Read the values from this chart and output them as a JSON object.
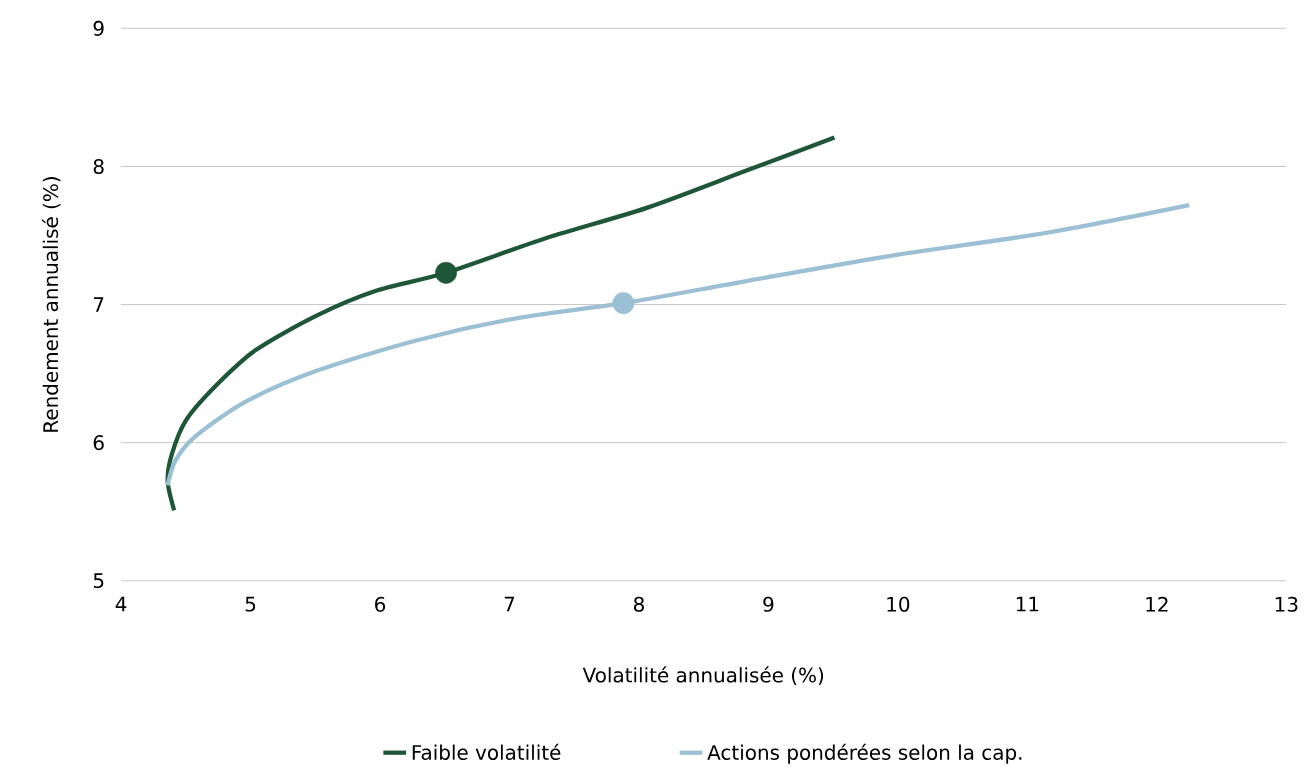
{
  "chart_data": {
    "type": "line",
    "xlabel": "Volatilité annualisée (%)",
    "ylabel": "Rendement annualisé (%)",
    "xlim": [
      4,
      13
    ],
    "xticks": [
      4,
      5,
      6,
      7,
      8,
      9,
      10,
      11,
      12,
      13
    ],
    "ylim": [
      5,
      9
    ],
    "yticks": [
      5,
      6,
      7,
      8,
      9
    ],
    "grid": "y",
    "legend": "bottom",
    "marker": "none",
    "series": [
      {
        "name": "Faible volatilité",
        "color": "#1e5638",
        "x": [
          4.41,
          4.36,
          4.39,
          4.5,
          4.73,
          5.04,
          5.51,
          5.97,
          6.51,
          7.28,
          8.06,
          8.83,
          9.51
        ],
        "values": [
          5.51,
          5.72,
          5.91,
          6.16,
          6.41,
          6.67,
          6.92,
          7.1,
          7.23,
          7.48,
          7.7,
          7.97,
          8.21
        ]
      },
      {
        "name": "Actions pondérées selon la cap.",
        "color": "#9bc0d3",
        "x": [
          4.36,
          4.42,
          4.58,
          4.97,
          5.51,
          6.28,
          7.05,
          7.88,
          8.83,
          9.99,
          11.15,
          12.25
        ],
        "values": [
          5.69,
          5.87,
          6.05,
          6.3,
          6.52,
          6.74,
          6.9,
          7.01,
          7.17,
          7.36,
          7.52,
          7.72
        ]
      },
      {
        "type": "scatter",
        "color": "#1e5638",
        "x": [
          6.51
        ],
        "values": [
          7.23
        ]
      },
      {
        "type": "scatter",
        "color": "#9bc0d3",
        "x": [
          7.88
        ],
        "values": [
          7.01
        ]
      }
    ]
  }
}
